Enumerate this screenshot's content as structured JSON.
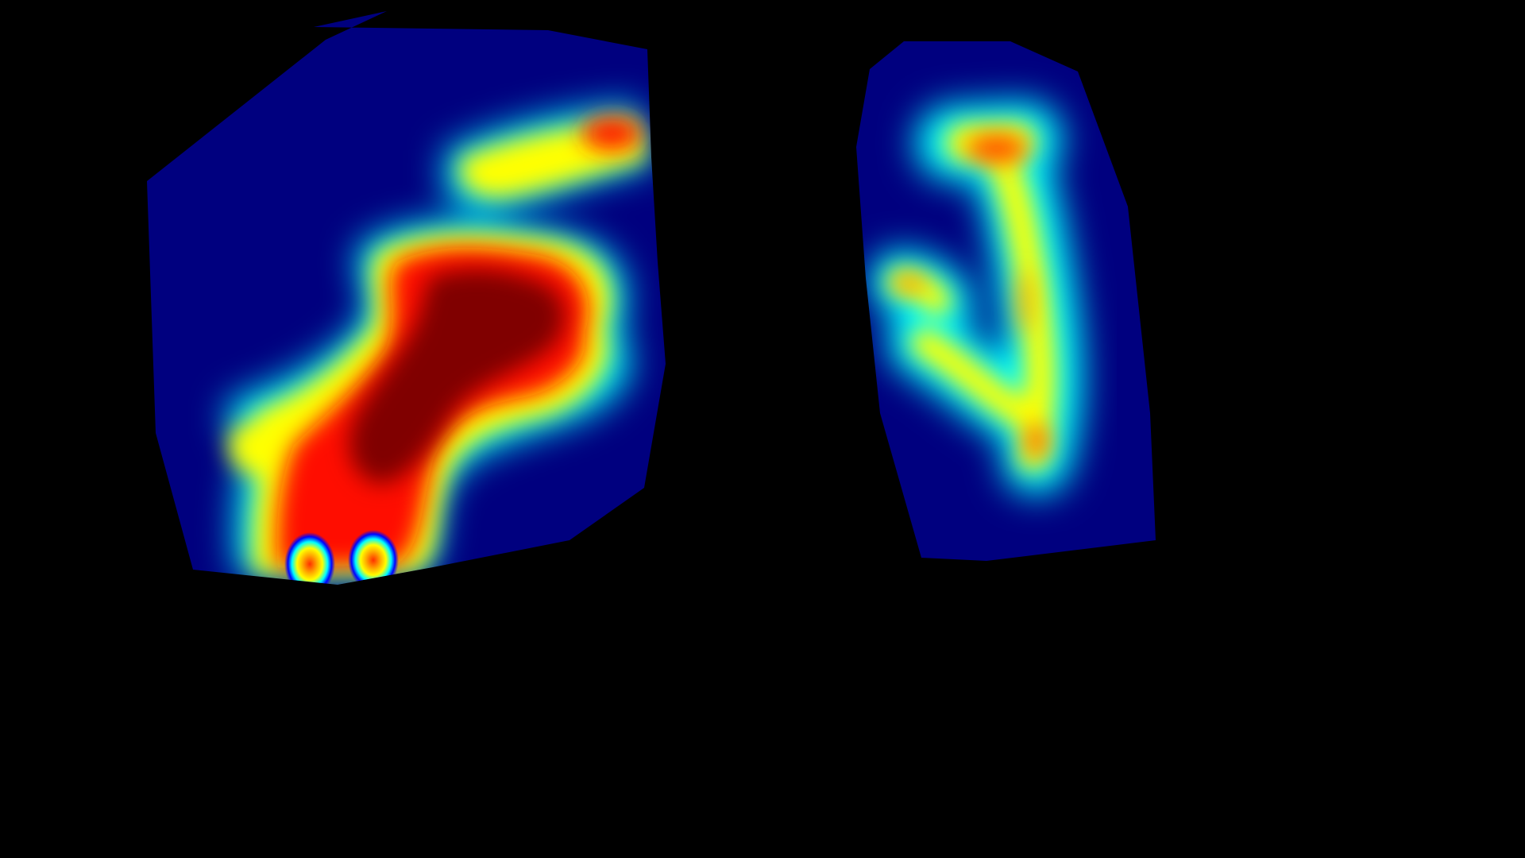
{
  "scene": {
    "background_color": "#000000",
    "colormap": "jet",
    "colormap_stops": [
      "#00007f",
      "#0000ff",
      "#00ffff",
      "#ffff00",
      "#ff0000",
      "#7f0000"
    ],
    "regions": [
      {
        "name": "left-region",
        "base_color": "#00007f",
        "hotspots": [
          {
            "name": "core",
            "intensity": 1.0
          },
          {
            "name": "upper-band",
            "intensity": 0.75
          },
          {
            "name": "upper-right-spot",
            "intensity": 0.85
          },
          {
            "name": "lower-left-arm",
            "intensity": 0.6
          },
          {
            "name": "bottom-spots",
            "intensity": 0.65
          }
        ]
      },
      {
        "name": "right-region",
        "base_color": "#00007f",
        "hotspots": [
          {
            "name": "top-spot",
            "intensity": 0.8
          },
          {
            "name": "vertical-branch",
            "intensity": 0.7
          },
          {
            "name": "diagonal-branch",
            "intensity": 0.65
          },
          {
            "name": "left-spot",
            "intensity": 0.55
          }
        ]
      }
    ]
  }
}
